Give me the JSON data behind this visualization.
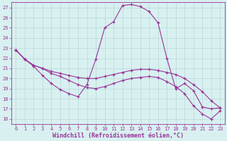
{
  "title": "Windchill (Refroidissement éolien,°C)",
  "x_hours": [
    0,
    1,
    2,
    3,
    4,
    5,
    6,
    7,
    8,
    9,
    10,
    11,
    12,
    13,
    14,
    15,
    16,
    17,
    18,
    19,
    20,
    21,
    22,
    23
  ],
  "line1": [
    22.8,
    21.9,
    21.2,
    20.3,
    19.5,
    18.9,
    18.5,
    18.2,
    19.4,
    21.9,
    25.0,
    25.6,
    27.2,
    27.3,
    27.1,
    26.6,
    25.5,
    22.0,
    19.0,
    19.5,
    18.8,
    17.2,
    17.0,
    17.1
  ],
  "line2": [
    22.8,
    21.9,
    21.3,
    21.0,
    20.7,
    20.5,
    20.3,
    20.1,
    20.0,
    20.0,
    20.2,
    20.4,
    20.6,
    20.8,
    20.9,
    20.9,
    20.8,
    20.6,
    20.4,
    20.0,
    19.4,
    18.7,
    17.8,
    17.1
  ],
  "line3": [
    22.8,
    21.9,
    21.3,
    21.0,
    20.5,
    20.2,
    19.8,
    19.4,
    19.1,
    19.0,
    19.2,
    19.5,
    19.8,
    20.0,
    20.1,
    20.2,
    20.1,
    19.7,
    19.2,
    18.5,
    17.3,
    16.5,
    16.0,
    16.8
  ],
  "line_color": "#993399",
  "bg_color": "#d8f0f0",
  "grid_color": "#b8d8d8",
  "ylim_min": 15.5,
  "ylim_max": 27.5,
  "yticks": [
    16,
    17,
    18,
    19,
    20,
    21,
    22,
    23,
    24,
    25,
    26,
    27
  ],
  "xticks": [
    0,
    1,
    2,
    3,
    4,
    5,
    6,
    7,
    8,
    9,
    10,
    11,
    12,
    13,
    14,
    15,
    16,
    17,
    18,
    19,
    20,
    21,
    22,
    23
  ],
  "tick_fontsize": 5.0,
  "xlabel_fontsize": 6.0
}
